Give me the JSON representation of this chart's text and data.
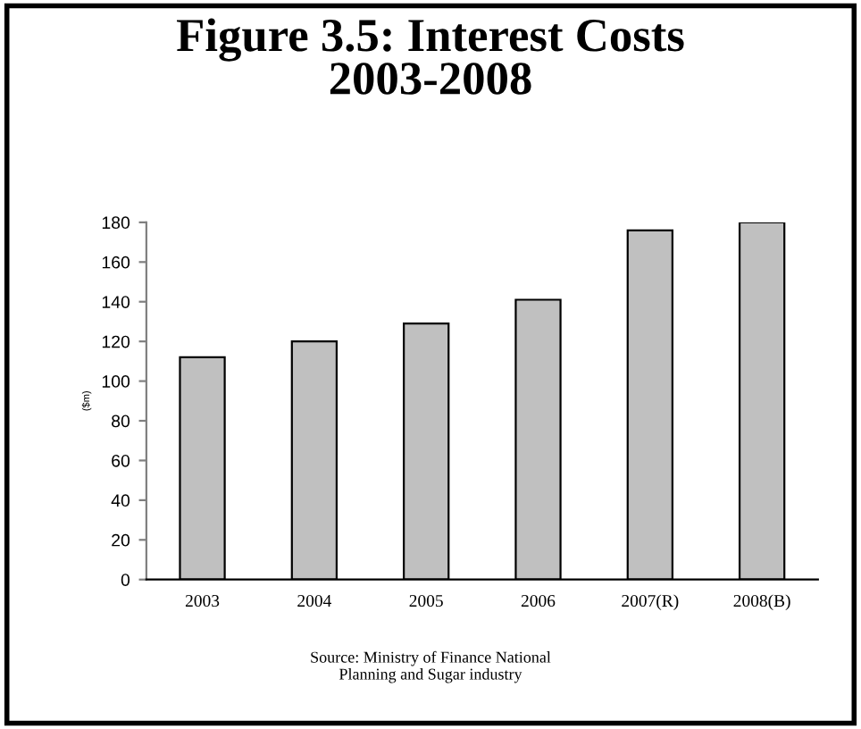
{
  "chart_data": {
    "type": "bar",
    "title": "Figure 3.5: Interest Costs\n2003-2008",
    "ylabel": "($m)",
    "categories": [
      "2003",
      "2004",
      "2005",
      "2006",
      "2007(R)",
      "2008(B)"
    ],
    "values": [
      112,
      120,
      129,
      141,
      176,
      180
    ],
    "color": "#c0c0c0",
    "ylim": [
      0,
      180
    ],
    "yticks": [
      0,
      20,
      40,
      60,
      80,
      100,
      120,
      140,
      160,
      180
    ],
    "grid": false,
    "annotations": [
      "Source: Ministry of Finance National\nPlanning and Sugar industry"
    ]
  }
}
